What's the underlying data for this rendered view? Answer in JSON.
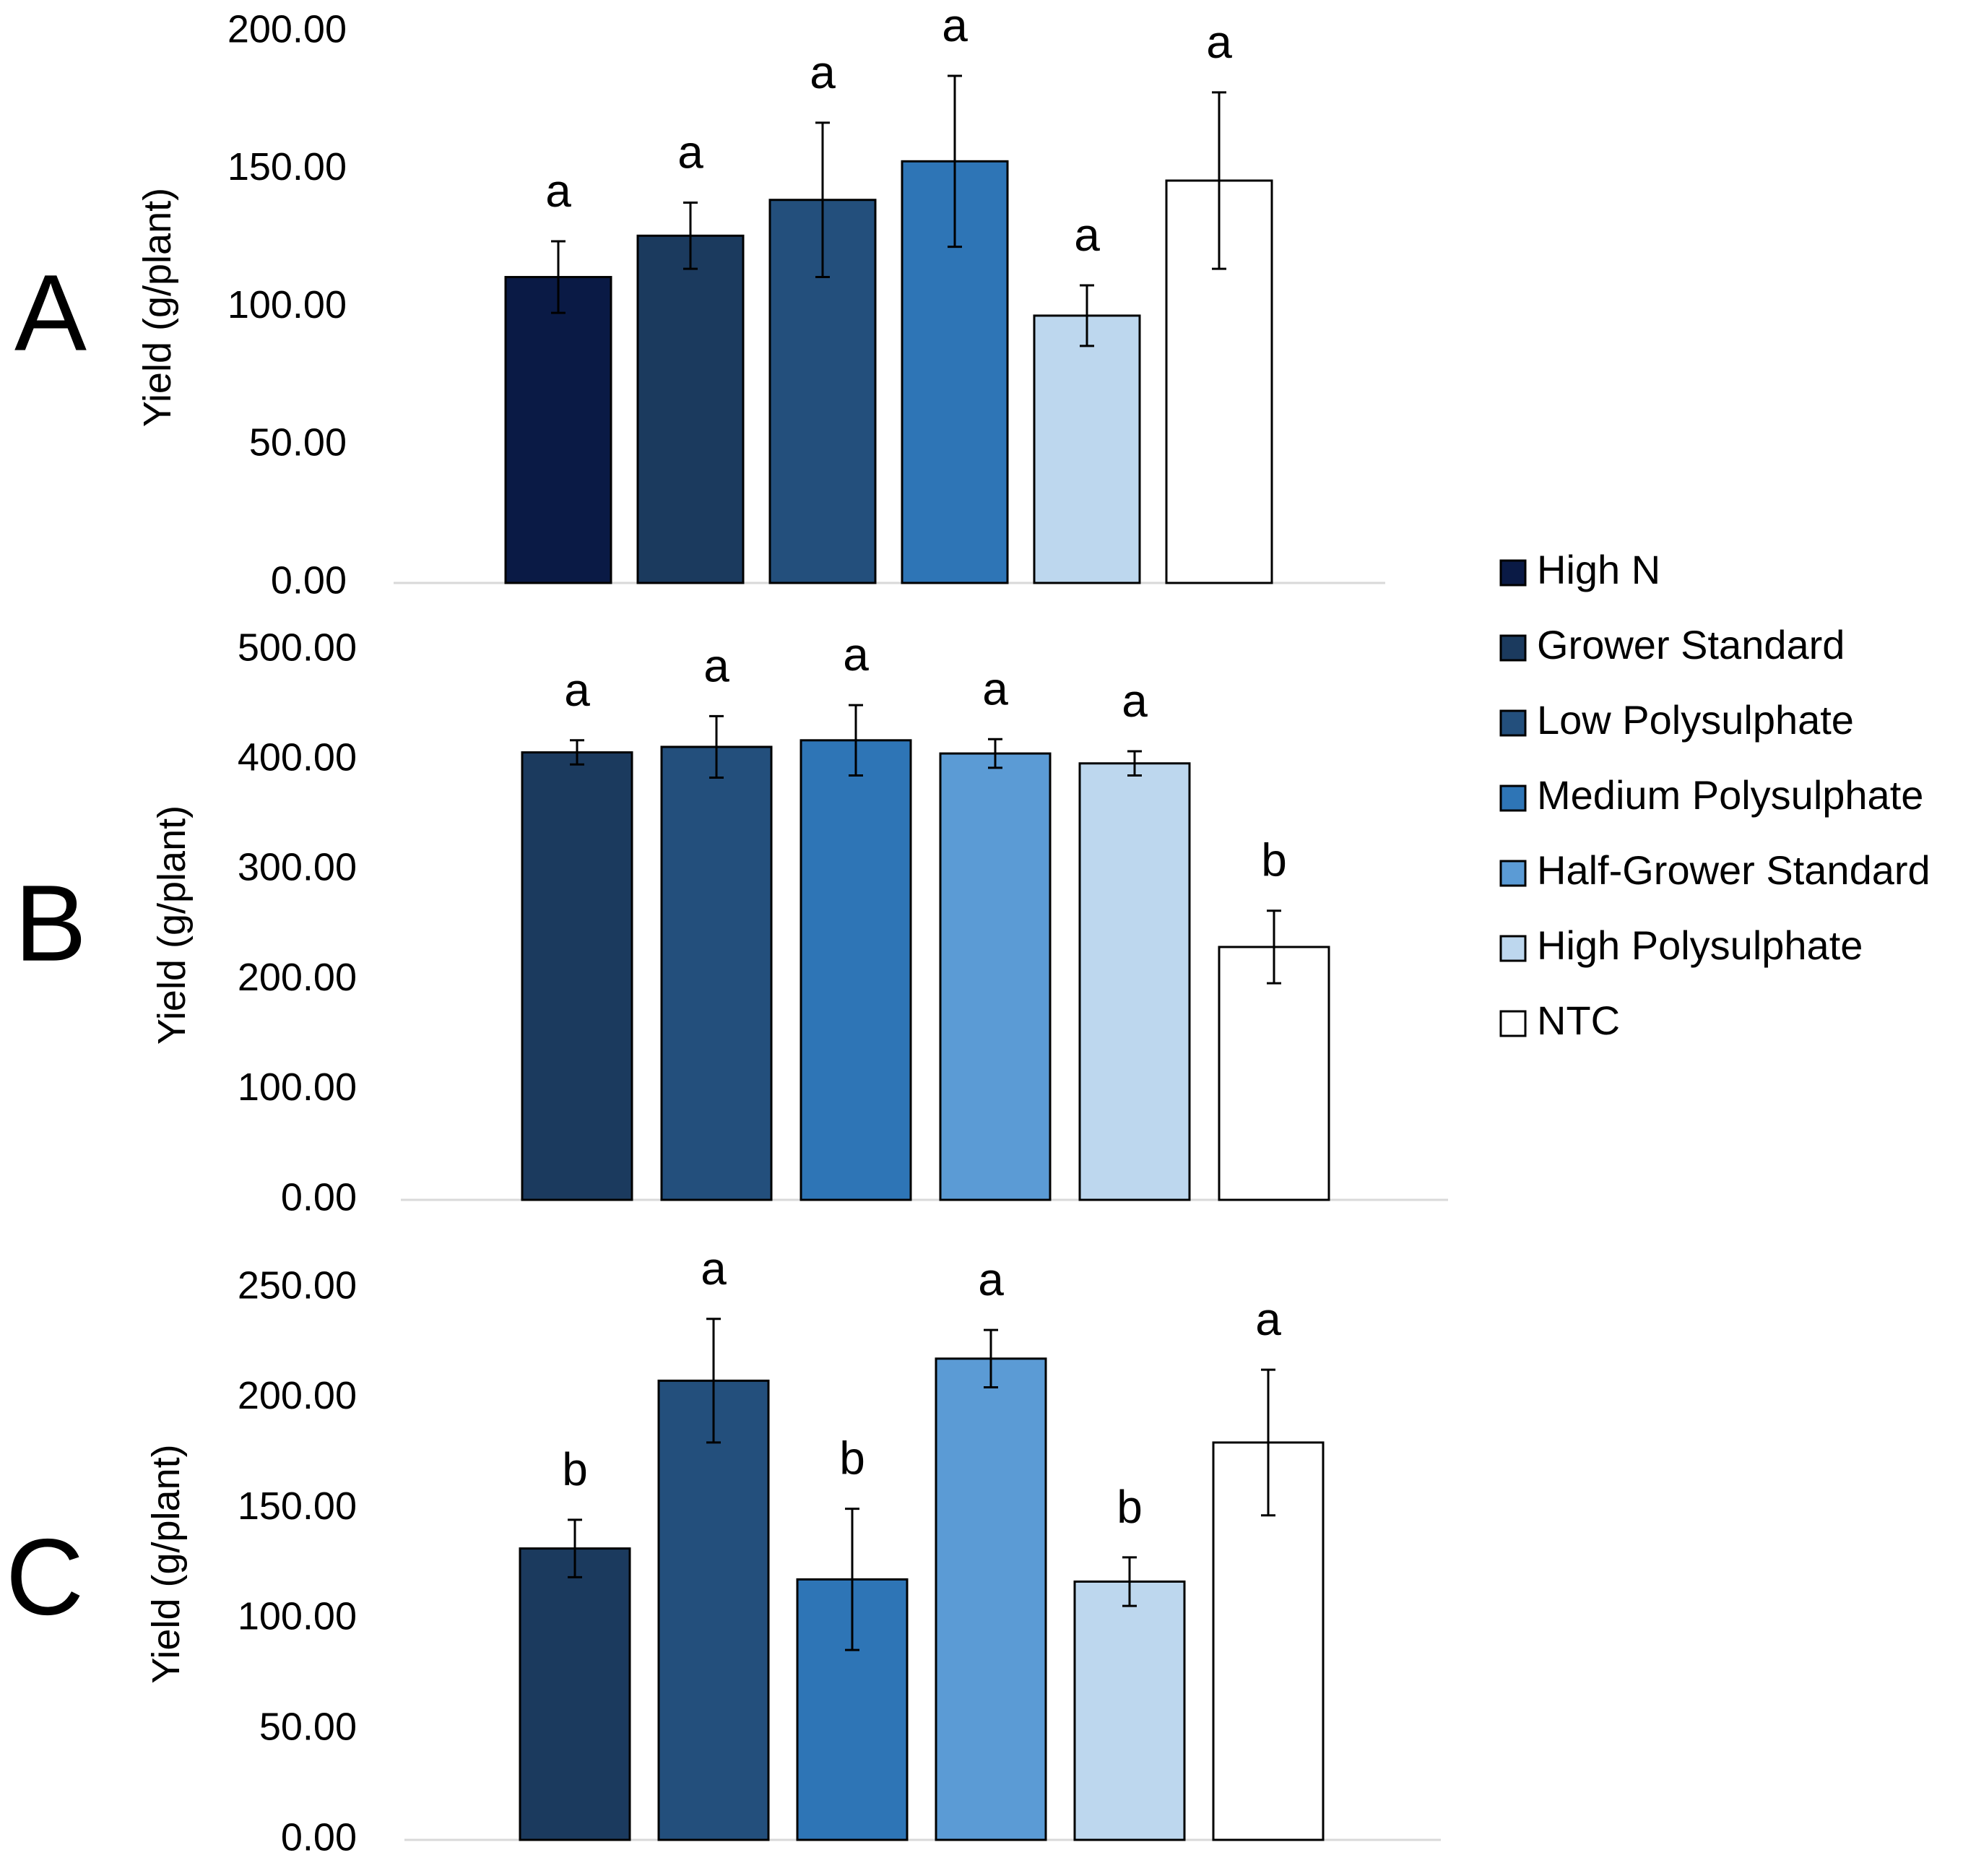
{
  "legend": {
    "position": "right",
    "items": [
      {
        "label": "High N",
        "color": "#0a1a45"
      },
      {
        "label": "Grower Standard",
        "color": "#1b3a5e"
      },
      {
        "label": "Low Polysulphate",
        "color": "#234f7c"
      },
      {
        "label": "Medium Polysulphate",
        "color": "#2e75b6"
      },
      {
        "label": "Half-Grower Standard",
        "color": "#5b9bd5"
      },
      {
        "label": "High Polysulphate",
        "color": "#bdd7ee"
      },
      {
        "label": "NTC",
        "color": "#ffffff"
      }
    ]
  },
  "chart_data": [
    {
      "type": "bar",
      "panel_label": "A",
      "ylabel": "Yield (g/plant)",
      "ylim": [
        0,
        200
      ],
      "yticks": [
        "0.00",
        "50.00",
        "100.00",
        "150.00",
        "200.00"
      ],
      "categories": [
        "High N",
        "Grower Standard",
        "Low Polysulphate",
        "Medium Polysulphate",
        "High Polysulphate",
        "NTC"
      ],
      "colors": [
        "#0a1a45",
        "#1b3a5e",
        "#234f7c",
        "#2e75b6",
        "#bdd7ee",
        "#ffffff"
      ],
      "values": [
        111,
        126,
        139,
        153,
        97,
        146
      ],
      "errors": [
        13,
        12,
        28,
        31,
        11,
        32
      ],
      "letters": [
        "a",
        "a",
        "a",
        "a",
        "a",
        "a"
      ]
    },
    {
      "type": "bar",
      "panel_label": "B",
      "ylabel": "Yield (g/plant)",
      "ylim": [
        0,
        500
      ],
      "yticks": [
        "0.00",
        "100.00",
        "200.00",
        "300.00",
        "400.00",
        "500.00"
      ],
      "categories": [
        "Grower Standard",
        "Low Polysulphate",
        "Medium Polysulphate",
        "Half-Grower Standard",
        "High Polysulphate",
        "NTC"
      ],
      "colors": [
        "#1b3a5e",
        "#234f7c",
        "#2e75b6",
        "#5b9bd5",
        "#bdd7ee",
        "#ffffff"
      ],
      "values": [
        407,
        412,
        418,
        406,
        397,
        230
      ],
      "errors": [
        11,
        28,
        32,
        13,
        11,
        33
      ],
      "letters": [
        "a",
        "a",
        "a",
        "a",
        "a",
        "b"
      ]
    },
    {
      "type": "bar",
      "panel_label": "C",
      "ylabel": "Yield (g/plant)",
      "ylim": [
        0,
        250
      ],
      "yticks": [
        "0.00",
        "50.00",
        "100.00",
        "150.00",
        "200.00",
        "250.00"
      ],
      "categories": [
        "Grower Standard",
        "Low Polysulphate",
        "Medium Polysulphate",
        "Half-Grower Standard",
        "High Polysulphate",
        "NTC"
      ],
      "colors": [
        "#1b3a5e",
        "#234f7c",
        "#2e75b6",
        "#5b9bd5",
        "#bdd7ee",
        "#ffffff"
      ],
      "values": [
        132,
        208,
        118,
        218,
        117,
        180
      ],
      "errors": [
        13,
        28,
        32,
        13,
        11,
        33
      ],
      "letters": [
        "b",
        "a",
        "b",
        "a",
        "b",
        "a"
      ]
    }
  ]
}
